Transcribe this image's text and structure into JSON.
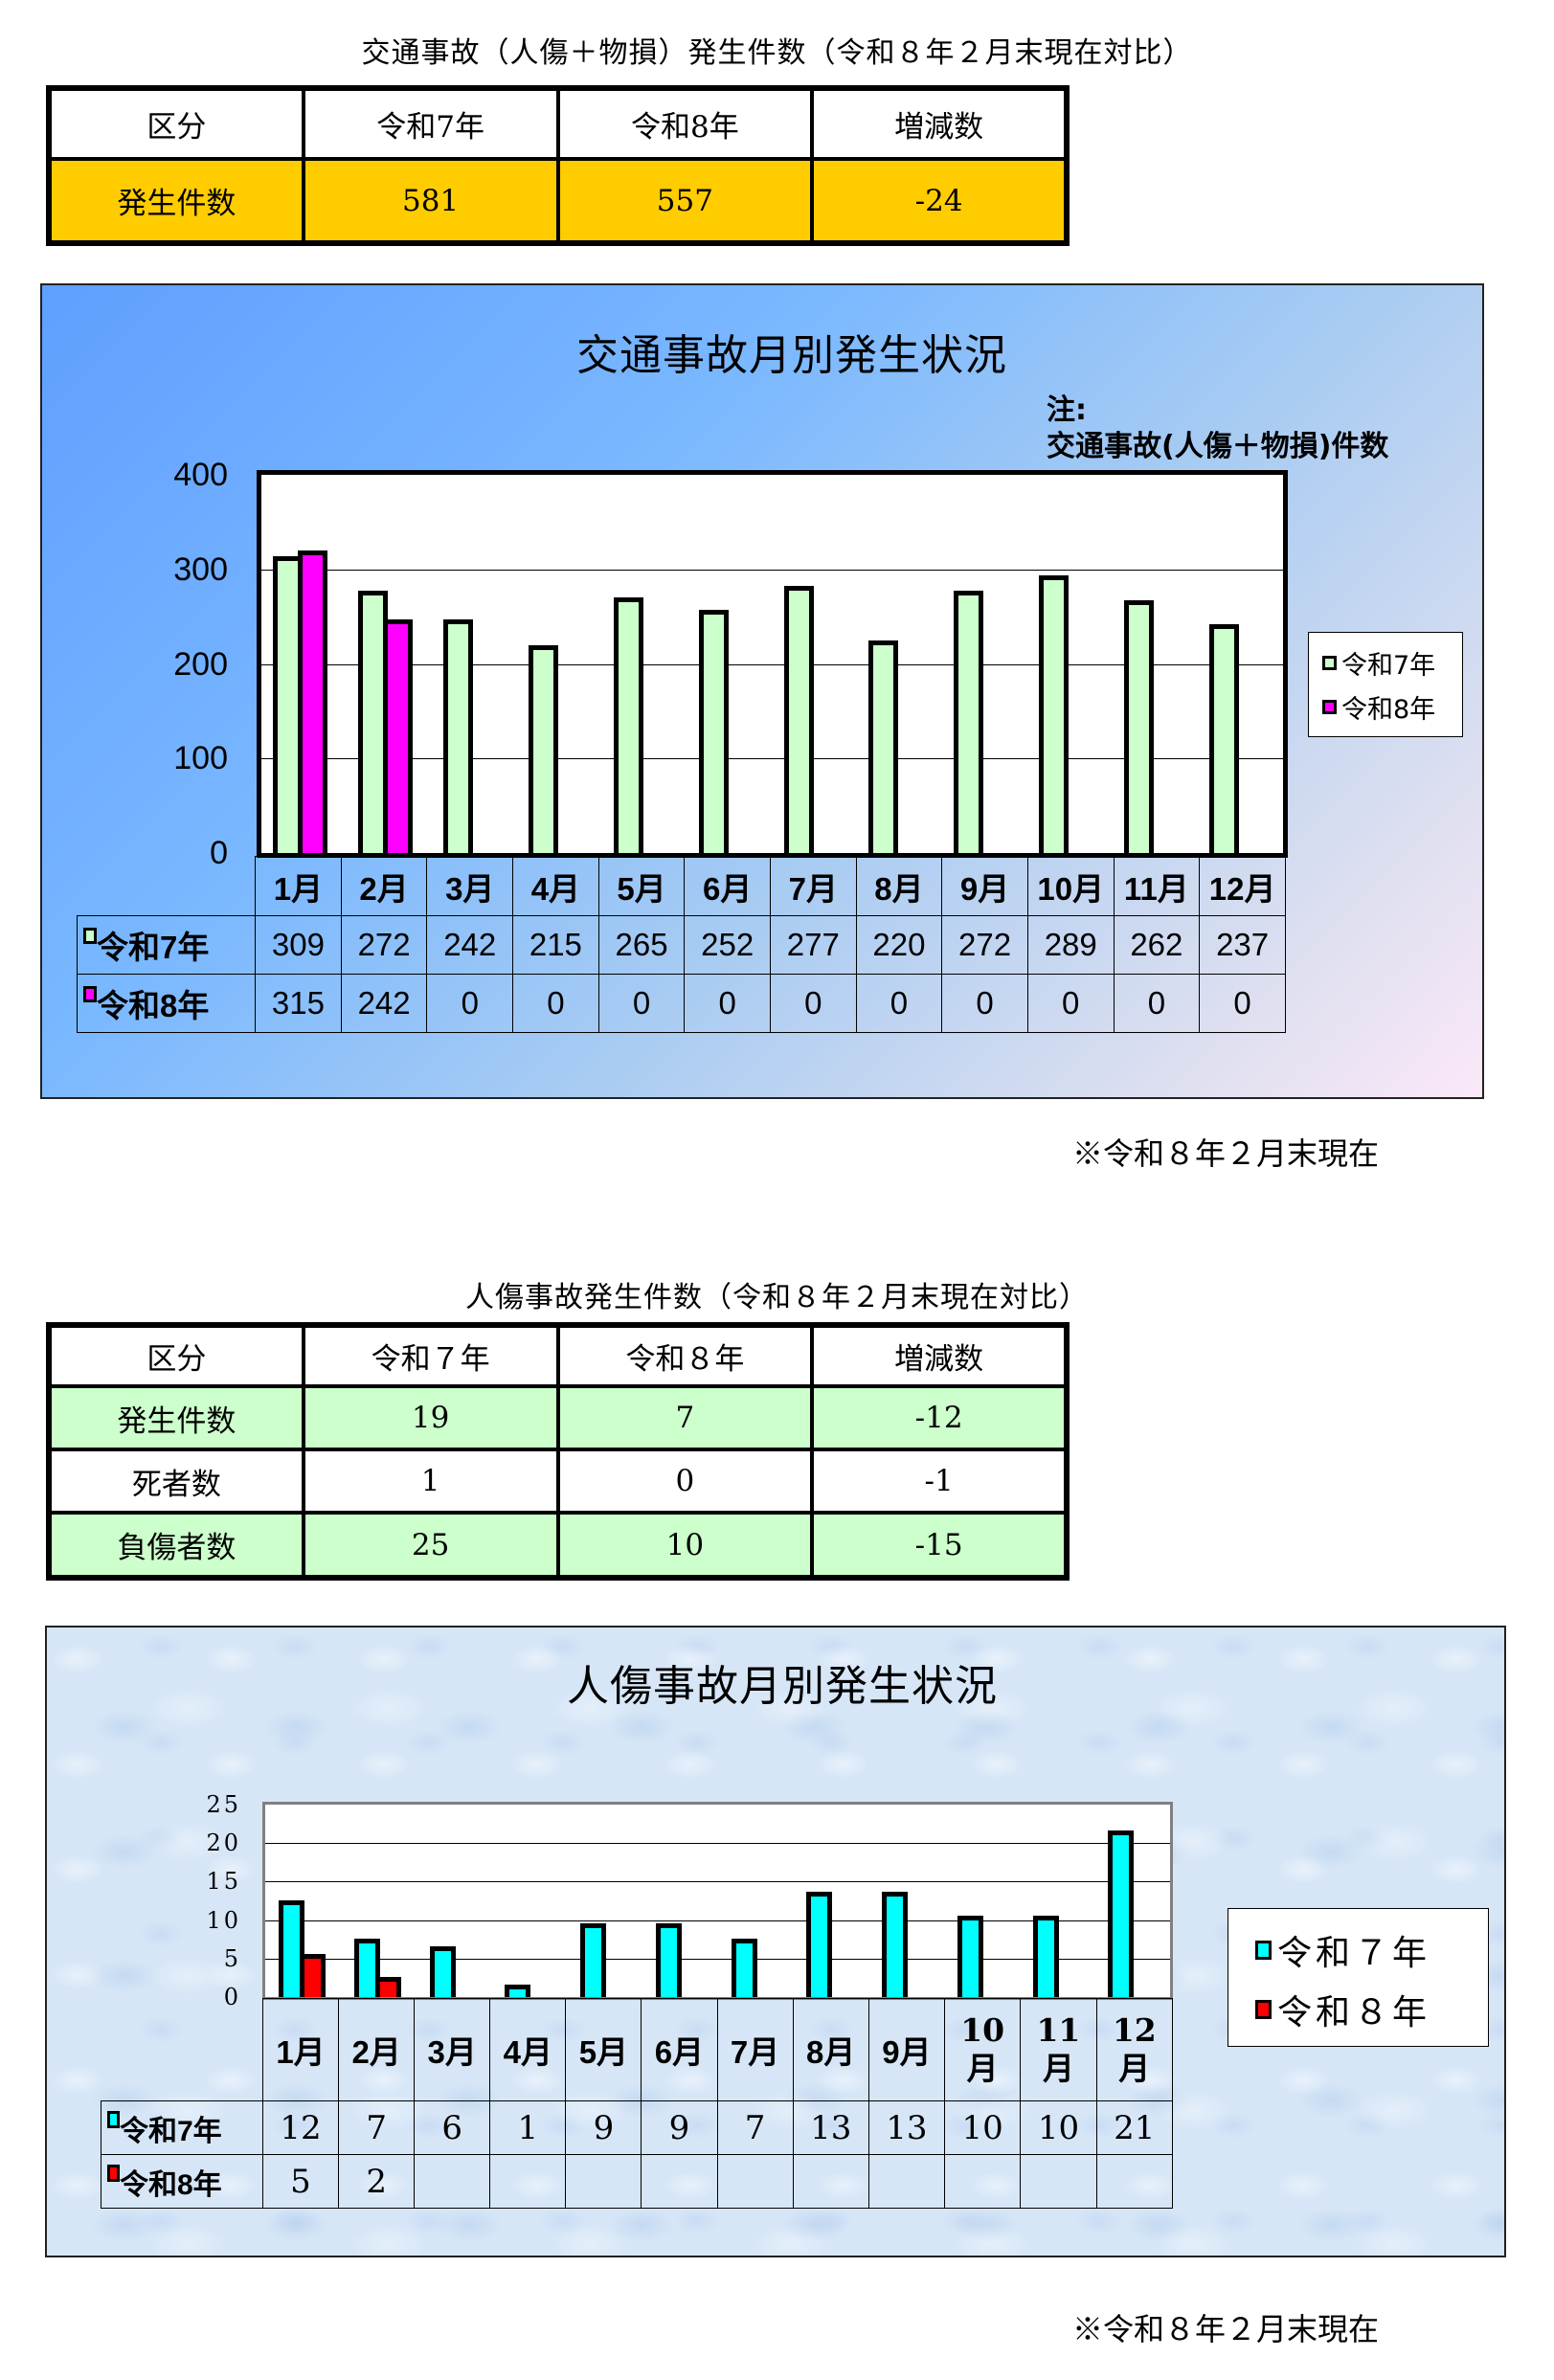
{
  "section1": {
    "title": "交通事故（人傷＋物損）発生件数（令和８年２月末現在対比）",
    "table": {
      "headers": [
        "区分",
        "令和7年",
        "令和8年",
        "増減数"
      ],
      "rows": [
        {
          "label": "発生件数",
          "r7": "581",
          "r8": "557",
          "diff": "-24"
        }
      ]
    }
  },
  "chart1": {
    "title": "交通事故月別発生状況",
    "note_line1": "注:",
    "note_line2": "交通事故(人傷＋物損)件数",
    "yticks": [
      "400",
      "300",
      "200",
      "100",
      "0"
    ],
    "months": [
      "1月",
      "2月",
      "3月",
      "4月",
      "5月",
      "6月",
      "7月",
      "8月",
      "9月",
      "10月",
      "11月",
      "12月"
    ],
    "series": [
      {
        "name": "令和7年",
        "color": "#ccffcc",
        "values": [
          "309",
          "272",
          "242",
          "215",
          "265",
          "252",
          "277",
          "220",
          "272",
          "289",
          "262",
          "237"
        ]
      },
      {
        "name": "令和8年",
        "color": "#ff00ff",
        "values": [
          "315",
          "242",
          "0",
          "0",
          "0",
          "0",
          "0",
          "0",
          "0",
          "0",
          "0",
          "0"
        ]
      }
    ],
    "legend": [
      "令和7年",
      "令和8年"
    ],
    "footnote": "※令和８年２月末現在"
  },
  "section2": {
    "title": "人傷事故発生件数（令和８年２月末現在対比）",
    "table": {
      "headers": [
        "区分",
        "令和７年",
        "令和８年",
        "増減数"
      ],
      "rows": [
        {
          "label": "発生件数",
          "r7": "19",
          "r8": "7",
          "diff": "-12"
        },
        {
          "label": "死者数",
          "r7": "1",
          "r8": "0",
          "diff": "-1"
        },
        {
          "label": "負傷者数",
          "r7": "25",
          "r8": "10",
          "diff": "-15"
        }
      ]
    }
  },
  "chart2": {
    "title": "人傷事故月別発生状況",
    "yticks": [
      "25",
      "20",
      "15",
      "10",
      "5",
      "0"
    ],
    "months": [
      "1月",
      "2月",
      "3月",
      "4月",
      "5月",
      "6月",
      "7月",
      "8月",
      "9月",
      "10\n月",
      "11\n月",
      "12\n月"
    ],
    "series": [
      {
        "name": "令和7年",
        "color": "#00ffff",
        "values": [
          "12",
          "7",
          "6",
          "1",
          "9",
          "9",
          "7",
          "13",
          "13",
          "10",
          "10",
          "21"
        ]
      },
      {
        "name": "令和8年",
        "color": "#ff0000",
        "values": [
          "5",
          "2",
          "",
          "",
          "",
          "",
          "",
          "",
          "",
          "",
          "",
          ""
        ]
      }
    ],
    "legend": [
      "令和７年",
      "令和８年"
    ],
    "footnote": "※令和８年２月末現在"
  },
  "chart_data": [
    {
      "type": "bar",
      "title": "交通事故月別発生状況",
      "subtitle": "注: 交通事故(人傷＋物損)件数",
      "categories": [
        "1月",
        "2月",
        "3月",
        "4月",
        "5月",
        "6月",
        "7月",
        "8月",
        "9月",
        "10月",
        "11月",
        "12月"
      ],
      "series": [
        {
          "name": "令和7年",
          "values": [
            309,
            272,
            242,
            215,
            265,
            252,
            277,
            220,
            272,
            289,
            262,
            237
          ]
        },
        {
          "name": "令和8年",
          "values": [
            315,
            242,
            0,
            0,
            0,
            0,
            0,
            0,
            0,
            0,
            0,
            0
          ]
        }
      ],
      "xlabel": "",
      "ylabel": "",
      "ylim": [
        0,
        400
      ],
      "yticks": [
        0,
        100,
        200,
        300,
        400
      ],
      "grid": true,
      "legend_position": "right",
      "data_table": true
    },
    {
      "type": "bar",
      "title": "人傷事故月別発生状況",
      "categories": [
        "1月",
        "2月",
        "3月",
        "4月",
        "5月",
        "6月",
        "7月",
        "8月",
        "9月",
        "10月",
        "11月",
        "12月"
      ],
      "series": [
        {
          "name": "令和7年",
          "values": [
            12,
            7,
            6,
            1,
            9,
            9,
            7,
            13,
            13,
            10,
            10,
            21
          ]
        },
        {
          "name": "令和8年",
          "values": [
            5,
            2,
            null,
            null,
            null,
            null,
            null,
            null,
            null,
            null,
            null,
            null
          ]
        }
      ],
      "xlabel": "",
      "ylabel": "",
      "ylim": [
        0,
        25
      ],
      "yticks": [
        0,
        5,
        10,
        15,
        20,
        25
      ],
      "grid": true,
      "legend_position": "right",
      "data_table": true
    }
  ]
}
